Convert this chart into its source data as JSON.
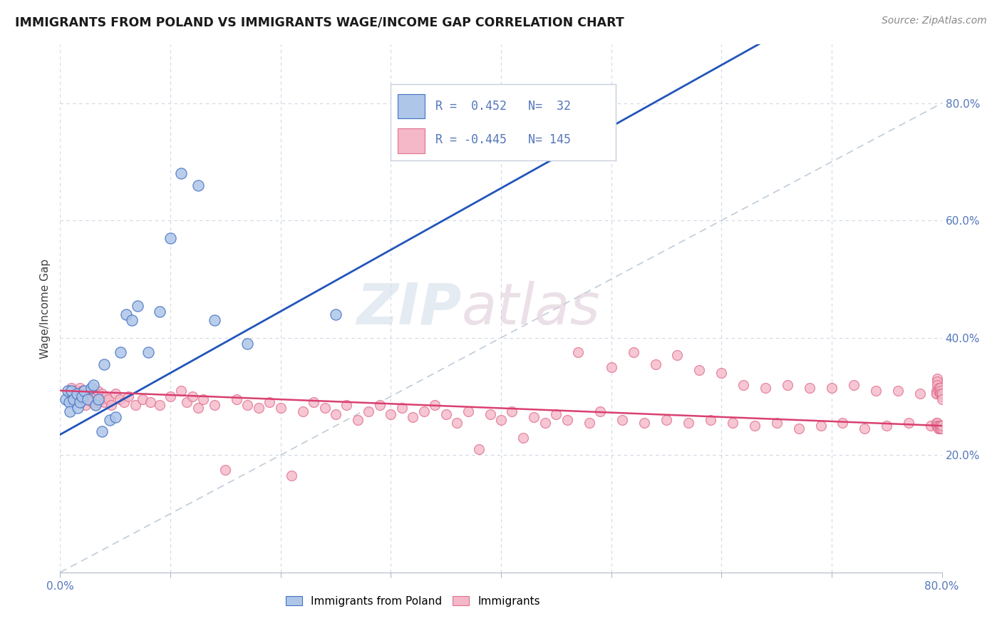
{
  "title": "IMMIGRANTS FROM POLAND VS IMMIGRANTS WAGE/INCOME GAP CORRELATION CHART",
  "source": "Source: ZipAtlas.com",
  "ylabel": "Wage/Income Gap",
  "xlim": [
    0.0,
    0.8
  ],
  "ylim": [
    0.0,
    0.9
  ],
  "ytick_labels": [
    "20.0%",
    "40.0%",
    "60.0%",
    "80.0%"
  ],
  "ytick_vals": [
    0.2,
    0.4,
    0.6,
    0.8
  ],
  "xtick_vals": [
    0.0,
    0.1,
    0.2,
    0.3,
    0.4,
    0.5,
    0.6,
    0.7,
    0.8
  ],
  "xtick_labels": [
    "0.0%",
    "",
    "",
    "",
    "",
    "",
    "",
    "",
    "80.0%"
  ],
  "blue_face": "#aec6e8",
  "blue_edge": "#4472c4",
  "pink_face": "#f4b8c8",
  "pink_edge": "#e07090",
  "blue_line": "#2255bb",
  "pink_line": "#d94070",
  "diag_color": "#c0ccd8",
  "tick_color": "#5577bb",
  "label_color": "#5577bb",
  "grid_color": "#d0d8e4",
  "legend_box_edge": "#c8d0dc",
  "legend_r1_text": "R =  0.452   N=  32",
  "legend_r2_text": "R = -0.445   N= 145",
  "blue_line_intercept": 0.235,
  "blue_line_slope": 1.05,
  "pink_line_intercept": 0.31,
  "pink_line_slope": -0.075,
  "blue_x": [
    0.005,
    0.007,
    0.008,
    0.009,
    0.01,
    0.012,
    0.015,
    0.016,
    0.018,
    0.02,
    0.022,
    0.025,
    0.028,
    0.03,
    0.032,
    0.035,
    0.038,
    0.04,
    0.045,
    0.05,
    0.055,
    0.06,
    0.065,
    0.07,
    0.08,
    0.09,
    0.1,
    0.11,
    0.125,
    0.14,
    0.17,
    0.25
  ],
  "blue_y": [
    0.295,
    0.31,
    0.29,
    0.275,
    0.31,
    0.295,
    0.305,
    0.28,
    0.29,
    0.3,
    0.31,
    0.295,
    0.315,
    0.32,
    0.285,
    0.295,
    0.24,
    0.355,
    0.26,
    0.265,
    0.375,
    0.44,
    0.43,
    0.455,
    0.375,
    0.445,
    0.57,
    0.68,
    0.66,
    0.43,
    0.39,
    0.44
  ],
  "pink_x": [
    0.008,
    0.01,
    0.01,
    0.011,
    0.012,
    0.013,
    0.014,
    0.015,
    0.016,
    0.017,
    0.018,
    0.019,
    0.02,
    0.02,
    0.021,
    0.022,
    0.023,
    0.024,
    0.025,
    0.026,
    0.027,
    0.028,
    0.029,
    0.03,
    0.031,
    0.032,
    0.033,
    0.034,
    0.035,
    0.036,
    0.038,
    0.04,
    0.042,
    0.044,
    0.046,
    0.05,
    0.054,
    0.058,
    0.062,
    0.068,
    0.075,
    0.082,
    0.09,
    0.1,
    0.11,
    0.115,
    0.12,
    0.125,
    0.13,
    0.14,
    0.15,
    0.16,
    0.17,
    0.18,
    0.19,
    0.2,
    0.21,
    0.22,
    0.23,
    0.24,
    0.25,
    0.26,
    0.27,
    0.28,
    0.29,
    0.3,
    0.31,
    0.32,
    0.33,
    0.34,
    0.35,
    0.36,
    0.37,
    0.38,
    0.39,
    0.4,
    0.41,
    0.42,
    0.43,
    0.44,
    0.45,
    0.46,
    0.47,
    0.48,
    0.49,
    0.5,
    0.51,
    0.52,
    0.53,
    0.54,
    0.55,
    0.56,
    0.57,
    0.58,
    0.59,
    0.6,
    0.61,
    0.62,
    0.63,
    0.64,
    0.65,
    0.66,
    0.67,
    0.68,
    0.69,
    0.7,
    0.71,
    0.72,
    0.73,
    0.74,
    0.75,
    0.76,
    0.77,
    0.78,
    0.79,
    0.795,
    0.795,
    0.795,
    0.795,
    0.795,
    0.796,
    0.796,
    0.796,
    0.796,
    0.796,
    0.797,
    0.797,
    0.797,
    0.797,
    0.797,
    0.798,
    0.798,
    0.798,
    0.798,
    0.798,
    0.799,
    0.799,
    0.799,
    0.799,
    0.799,
    0.8,
    0.8,
    0.8,
    0.8,
    0.8
  ],
  "pink_y": [
    0.305,
    0.315,
    0.295,
    0.31,
    0.3,
    0.295,
    0.31,
    0.295,
    0.305,
    0.3,
    0.315,
    0.29,
    0.31,
    0.3,
    0.31,
    0.295,
    0.285,
    0.305,
    0.3,
    0.295,
    0.31,
    0.3,
    0.29,
    0.295,
    0.305,
    0.285,
    0.3,
    0.31,
    0.29,
    0.295,
    0.305,
    0.29,
    0.3,
    0.295,
    0.285,
    0.305,
    0.295,
    0.29,
    0.3,
    0.285,
    0.295,
    0.29,
    0.285,
    0.3,
    0.31,
    0.29,
    0.3,
    0.28,
    0.295,
    0.285,
    0.175,
    0.295,
    0.285,
    0.28,
    0.29,
    0.28,
    0.165,
    0.275,
    0.29,
    0.28,
    0.27,
    0.285,
    0.26,
    0.275,
    0.285,
    0.27,
    0.28,
    0.265,
    0.275,
    0.285,
    0.27,
    0.255,
    0.275,
    0.21,
    0.27,
    0.26,
    0.275,
    0.23,
    0.265,
    0.255,
    0.27,
    0.26,
    0.375,
    0.255,
    0.275,
    0.35,
    0.26,
    0.375,
    0.255,
    0.355,
    0.26,
    0.37,
    0.255,
    0.345,
    0.26,
    0.34,
    0.255,
    0.32,
    0.25,
    0.315,
    0.255,
    0.32,
    0.245,
    0.315,
    0.25,
    0.315,
    0.255,
    0.32,
    0.245,
    0.31,
    0.25,
    0.31,
    0.255,
    0.305,
    0.25,
    0.305,
    0.255,
    0.31,
    0.25,
    0.305,
    0.33,
    0.255,
    0.325,
    0.25,
    0.32,
    0.245,
    0.315,
    0.25,
    0.31,
    0.245,
    0.305,
    0.25,
    0.31,
    0.245,
    0.315,
    0.25,
    0.31,
    0.245,
    0.305,
    0.25,
    0.3,
    0.245,
    0.305,
    0.25,
    0.295
  ]
}
